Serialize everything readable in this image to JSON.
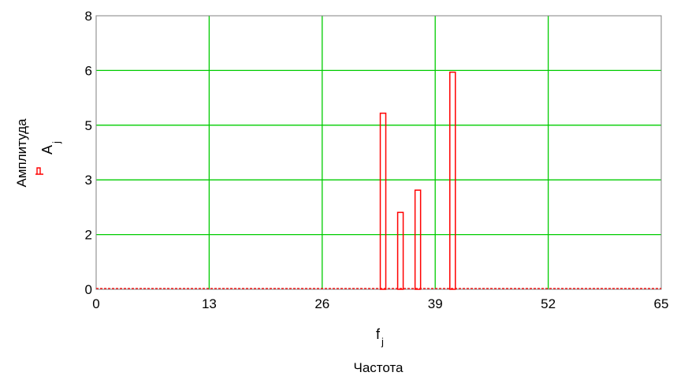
{
  "chart_data": {
    "type": "bar",
    "xlabel": "Частота",
    "ylabel": "Амплитуда",
    "x_variable": {
      "name": "f",
      "subscript": "j"
    },
    "y_variable": {
      "name": "A",
      "subscript": "j"
    },
    "xlim": [
      0,
      65
    ],
    "ylim": [
      0,
      8
    ],
    "x_ticks": [
      "0",
      "13",
      "26",
      "39",
      "52",
      "65"
    ],
    "y_ticks": [
      "0",
      "2",
      "3",
      "5",
      "6",
      "8"
    ],
    "grid": true,
    "grid_color": "#00cc00",
    "bar_color": "#ff0000",
    "x": [
      33,
      35,
      37,
      41
    ],
    "values": [
      5.15,
      2.25,
      2.9,
      6.35
    ]
  }
}
